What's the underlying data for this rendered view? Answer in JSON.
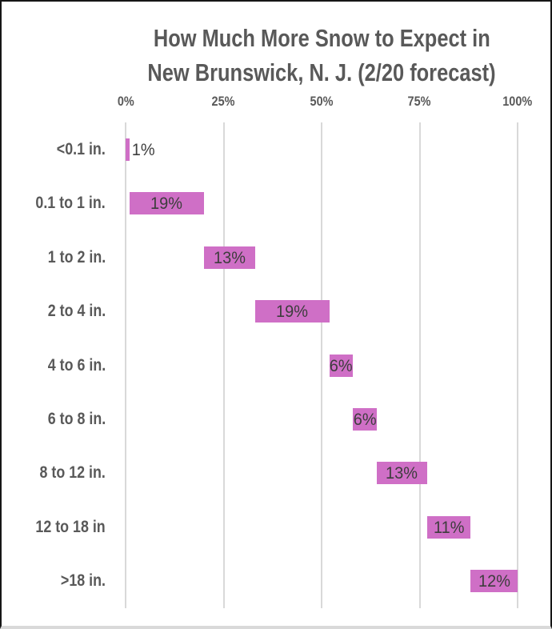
{
  "window": {
    "background": "#FFFFFF",
    "frame_border_color": "#161616",
    "bottom_edge_color": "#D9D9D9"
  },
  "chart_data": {
    "type": "bar",
    "subtype": "waterfall",
    "orientation": "horizontal",
    "title": "How Much More Snow to Expect in New Brunswick, N. J. (2/20 forecast)",
    "title_lines": [
      "How Much More Snow to Expect in",
      "New Brunswick, N. J. (2/20 forecast)"
    ],
    "categories": [
      "<0.1 in.",
      "0.1 to 1 in.",
      "1 to 2 in.",
      "2 to 4 in.",
      "4 to 6 in.",
      "6 to 8 in.",
      "8 to 12 in.",
      "12 to 18 in",
      ">18 in."
    ],
    "values": [
      1,
      19,
      13,
      19,
      6,
      6,
      13,
      11,
      12
    ],
    "bar_starts": [
      0,
      1,
      20,
      33,
      52,
      58,
      64,
      77,
      88
    ],
    "data_labels": [
      "1%",
      "19%",
      "13%",
      "19%",
      "6%",
      "6%",
      "13%",
      "11%",
      "12%"
    ],
    "x_ticks": [
      "0%",
      "25%",
      "50%",
      "75%",
      "100%"
    ],
    "x_tick_values": [
      0,
      25,
      50,
      75,
      100
    ],
    "xlim": [
      0,
      100
    ],
    "xlabel": "",
    "ylabel": "",
    "legend": "none",
    "grid": "vertical",
    "colors": {
      "bar": "#CF6FC6",
      "gridline": "#D9D9D9",
      "title_text": "#595959",
      "axis_tick_text": "#595959",
      "category_text": "#595959",
      "data_label_text": "#3D3D3D"
    }
  }
}
